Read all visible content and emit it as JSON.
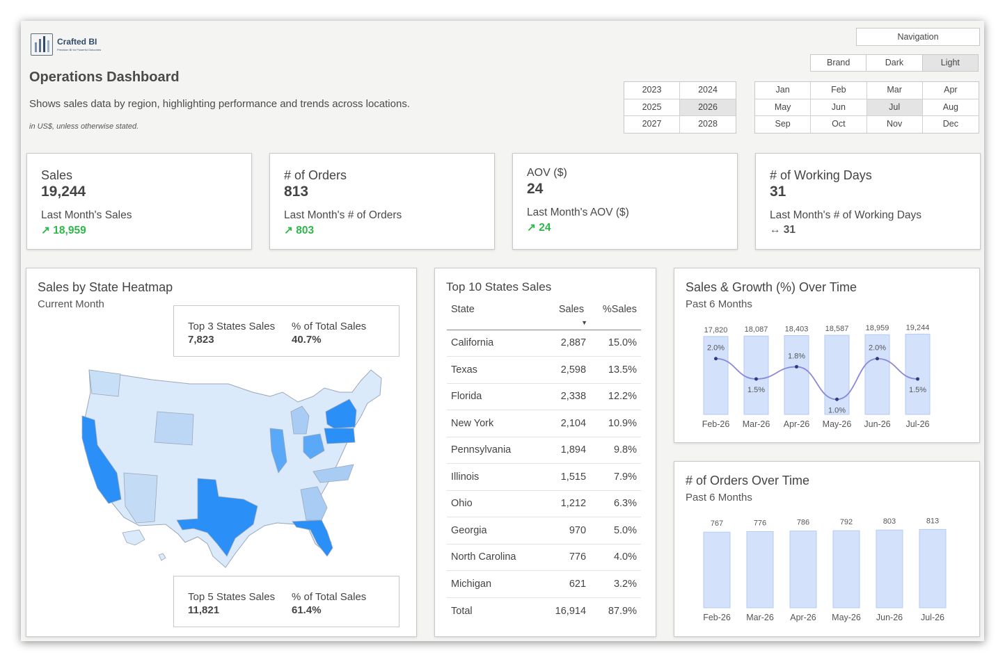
{
  "brand": {
    "name": "Crafted BI",
    "tagline": "Precision BI for Powerful Outcomes"
  },
  "header": {
    "title": "Operations Dashboard",
    "description": "Shows sales data by region, highlighting performance and trends across locations.",
    "note": "in US$, unless otherwise stated."
  },
  "navigation": {
    "label": "Navigation"
  },
  "theme_options": [
    {
      "label": "Brand",
      "selected": false
    },
    {
      "label": "Dark",
      "selected": false
    },
    {
      "label": "Light",
      "selected": true
    }
  ],
  "years": [
    {
      "label": "2023",
      "selected": false
    },
    {
      "label": "2024",
      "selected": false
    },
    {
      "label": "2025",
      "selected": false
    },
    {
      "label": "2026",
      "selected": true
    },
    {
      "label": "2027",
      "selected": false
    },
    {
      "label": "2028",
      "selected": false
    }
  ],
  "months": [
    {
      "label": "Jan",
      "selected": false
    },
    {
      "label": "Feb",
      "selected": false
    },
    {
      "label": "Mar",
      "selected": false
    },
    {
      "label": "Apr",
      "selected": false
    },
    {
      "label": "May",
      "selected": false
    },
    {
      "label": "Jun",
      "selected": false
    },
    {
      "label": "Jul",
      "selected": true
    },
    {
      "label": "Aug",
      "selected": false
    },
    {
      "label": "Sep",
      "selected": false
    },
    {
      "label": "Oct",
      "selected": false
    },
    {
      "label": "Nov",
      "selected": false
    },
    {
      "label": "Dec",
      "selected": false
    }
  ],
  "kpis": [
    {
      "label": "Sales",
      "value": "19,244",
      "sub_label": "Last Month's Sales",
      "delta": "↗ 18,959",
      "trend": "up"
    },
    {
      "label": "# of Orders",
      "value": "813",
      "sub_label": "Last Month's # of Orders",
      "delta": "↗ 803",
      "trend": "up"
    },
    {
      "label": "AOV ($)",
      "value": "24",
      "sub_label": "Last Month's AOV ($)",
      "delta": "↗ 24",
      "trend": "up"
    },
    {
      "label": "# of Working Days",
      "value": "31",
      "sub_label": "Last Month's # of Working Days",
      "delta": "↔ 31",
      "trend": "flat"
    }
  ],
  "heatmap": {
    "title": "Sales by State Heatmap",
    "subtitle": "Current Month",
    "top3": {
      "label": "Top 3 States Sales",
      "value": "7,823",
      "pct_label": "% of Total Sales",
      "pct_value": "40.7%"
    },
    "top5": {
      "label": "Top 5 States Sales",
      "value": "11,821",
      "pct_label": "% of Total Sales",
      "pct_value": "61.4%"
    },
    "colors": {
      "high": "#2a8ff7",
      "mid": "#5aa8f8",
      "low": "#a9ccf5",
      "base": "#dbeafb"
    }
  },
  "top10": {
    "title": "Top 10 States Sales",
    "columns": [
      "State",
      "Sales",
      "%Sales"
    ],
    "rows": [
      [
        "California",
        "2,887",
        "15.0%"
      ],
      [
        "Texas",
        "2,598",
        "13.5%"
      ],
      [
        "Florida",
        "2,338",
        "12.2%"
      ],
      [
        "New York",
        "2,104",
        "10.9%"
      ],
      [
        "Pennsylvania",
        "1,894",
        "9.8%"
      ],
      [
        "Illinois",
        "1,515",
        "7.9%"
      ],
      [
        "Ohio",
        "1,212",
        "6.3%"
      ],
      [
        "Georgia",
        "970",
        "5.0%"
      ],
      [
        "North Carolina",
        "776",
        "4.0%"
      ],
      [
        "Michigan",
        "621",
        "3.2%"
      ]
    ],
    "total": [
      "Total",
      "16,914",
      "87.9%"
    ]
  },
  "chart_data": [
    {
      "type": "bar",
      "title": "Sales & Growth (%) Over Time",
      "subtitle": "Past 6 Months",
      "categories": [
        "Feb-26",
        "Mar-26",
        "Apr-26",
        "May-26",
        "Jun-26",
        "Jul-26"
      ],
      "series": [
        {
          "values": [
            17820,
            18087,
            18403,
            18587,
            18959,
            19244
          ],
          "labels": [
            "17,820",
            "18,087",
            "18,403",
            "18,587",
            "18,959",
            "19,244"
          ]
        },
        {
          "type": "line",
          "values": [
            2.0,
            1.5,
            1.8,
            1.0,
            2.0,
            1.5
          ],
          "labels": [
            "2.0%",
            "1.5%",
            "1.8%",
            "1.0%",
            "2.0%",
            "1.5%"
          ]
        }
      ],
      "colors": {
        "bar": "#d3e1fb",
        "bar_border": "#b5cbf5",
        "line": "#8a88d8",
        "point": "#2f3a80"
      }
    },
    {
      "type": "bar",
      "title": "# of Orders Over Time",
      "subtitle": "Past 6 Months",
      "categories": [
        "Feb-26",
        "Mar-26",
        "Apr-26",
        "May-26",
        "Jun-26",
        "Jul-26"
      ],
      "values": [
        767,
        776,
        786,
        792,
        803,
        813
      ],
      "colors": {
        "bar": "#d3e1fb",
        "bar_border": "#b5cbf5"
      }
    }
  ]
}
